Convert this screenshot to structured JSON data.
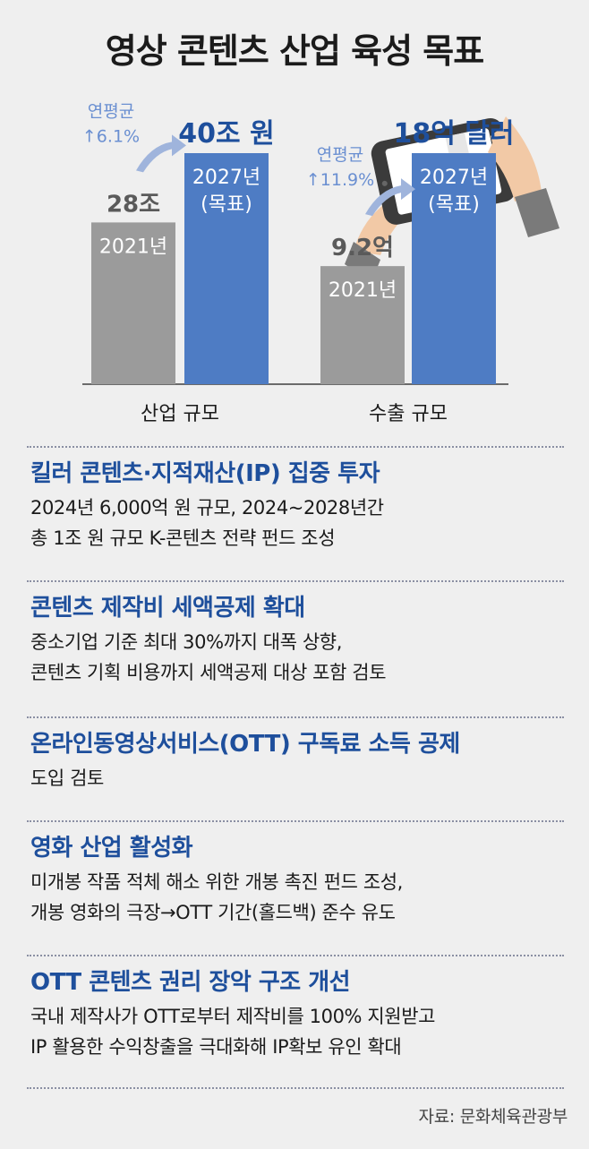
{
  "title": "영상 콘텐츠 산업 육성 목표",
  "colors": {
    "bar_2021": "#9b9b9b",
    "bar_2027": "#4e7cc4",
    "accent_blue": "#1e4f9c",
    "growth_text": "#6a8fd1",
    "background": "#efefef"
  },
  "chart_data": {
    "type": "bar",
    "groups": [
      {
        "category": "산업 규모",
        "growth_label": "연평균",
        "growth_rate": "↑6.1%",
        "bars": [
          {
            "year_label": "2021년",
            "note": "",
            "value": 28,
            "value_label": "28조"
          },
          {
            "year_label": "2027년",
            "note": "(목표)",
            "value": 40,
            "value_label": "40조 원"
          }
        ]
      },
      {
        "category": "수출 규모",
        "growth_label": "연평균",
        "growth_rate": "↑11.9%",
        "bars": [
          {
            "year_label": "2021년",
            "note": "",
            "value": 9.2,
            "value_label": "9.2억"
          },
          {
            "year_label": "2027년",
            "note": "(목표)",
            "value": 18,
            "value_label": "18억 달러"
          }
        ]
      }
    ]
  },
  "sections": [
    {
      "title": "킬러 콘텐츠·지적재산(IP) 집중 투자",
      "lines": [
        "2024년 6,000억 원 규모, 2024~2028년간",
        "총 1조 원 규모 K-콘텐츠 전략 펀드 조성"
      ]
    },
    {
      "title": "콘텐츠 제작비 세액공제 확대",
      "lines": [
        "중소기업 기준 최대 30%까지 대폭 상향,",
        "콘텐츠 기획 비용까지 세액공제 대상 포함 검토"
      ]
    },
    {
      "title": "온라인동영상서비스(OTT) 구독료 소득 공제",
      "lines": [
        "도입 검토"
      ]
    },
    {
      "title": "영화 산업 활성화",
      "lines": [
        "미개봉 작품 적체 해소 위한 개봉 촉진 펀드 조성,",
        "개봉 영화의 극장→OTT 기간(홀드백) 준수 유도"
      ]
    },
    {
      "title": "OTT 콘텐츠 권리 장악 구조 개선",
      "lines": [
        "국내 제작사가 OTT로부터 제작비를 100% 지원받고",
        "IP 활용한 수익창출을 극대화해 IP확보 유인 확대"
      ]
    }
  ],
  "source": "자료: 문화체육관광부"
}
